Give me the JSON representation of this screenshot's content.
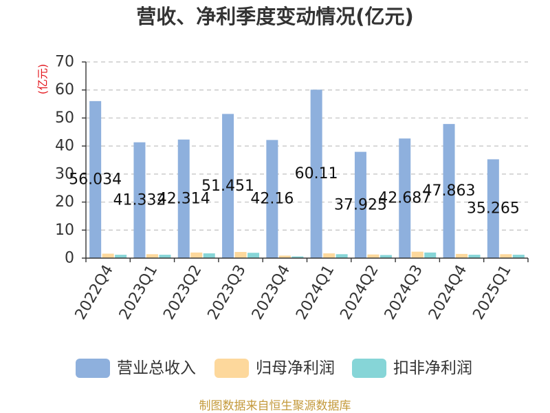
{
  "chart_data": {
    "type": "bar",
    "title": "营收、净利季度变动情况(亿元)",
    "ylabel": "(亿元)",
    "categories": [
      "2022Q4",
      "2023Q1",
      "2023Q2",
      "2023Q3",
      "2023Q4",
      "2024Q1",
      "2024Q2",
      "2024Q3",
      "2024Q4",
      "2025Q1"
    ],
    "ylim": [
      0,
      70
    ],
    "yticks": [
      0,
      10,
      20,
      30,
      40,
      50,
      60,
      70
    ],
    "grid": true,
    "legend_position": "bottom",
    "series": [
      {
        "name": "营业总收入",
        "color": "#8eb0dd",
        "show_data_labels": true,
        "values": [
          56.034,
          41.332,
          42.314,
          51.451,
          42.16,
          60.11,
          37.925,
          42.687,
          47.863,
          35.265
        ]
      },
      {
        "name": "归母净利润",
        "color": "#fdd89c",
        "show_data_labels": false,
        "values": [
          1.6,
          1.4,
          2.0,
          2.2,
          0.9,
          1.7,
          1.3,
          2.3,
          1.5,
          1.4
        ]
      },
      {
        "name": "扣非净利润",
        "color": "#86d5d7",
        "show_data_labels": false,
        "values": [
          1.2,
          1.2,
          1.7,
          1.9,
          0.6,
          1.4,
          1.1,
          2.0,
          1.2,
          1.2
        ]
      }
    ]
  },
  "footer": {
    "source": "制图数据来自恒生聚源数据库"
  },
  "colors": {
    "axis_name": "#e3161c",
    "source_text": "#c49a3c",
    "axis_line": "#333333",
    "gridline": "#c0c0c0"
  }
}
